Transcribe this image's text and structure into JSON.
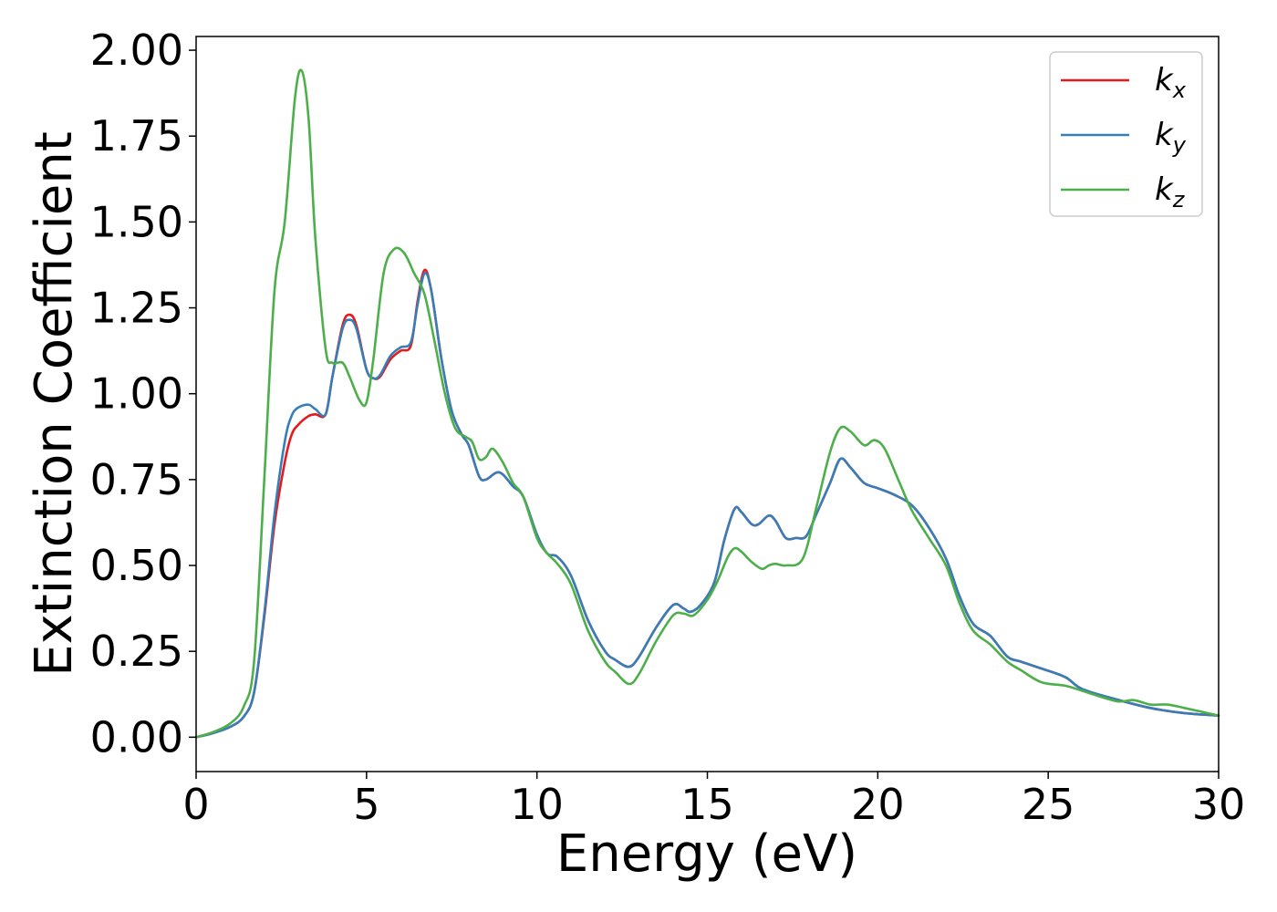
{
  "chart_data": {
    "type": "line",
    "xlabel": "Energy (eV)",
    "ylabel": "Extinction Coefficient",
    "xlim": [
      0,
      30
    ],
    "ylim": [
      -0.1,
      2.04
    ],
    "xticks": [
      0,
      5,
      10,
      15,
      20,
      25,
      30
    ],
    "xtick_labels": [
      "0",
      "5",
      "10",
      "15",
      "20",
      "25",
      "30"
    ],
    "yticks": [
      0,
      0.25,
      0.5,
      0.75,
      1.0,
      1.25,
      1.5,
      1.75,
      2.0
    ],
    "ytick_labels": [
      "0.00",
      "0.25",
      "0.50",
      "0.75",
      "1.00",
      "1.25",
      "1.50",
      "1.75",
      "2.00"
    ],
    "grid": false,
    "legend_position": "top-right",
    "series": [
      {
        "name": "k",
        "subscript": "x",
        "color": "#e41a1c",
        "points": [
          [
            0,
            0
          ],
          [
            0.5,
            0.012
          ],
          [
            1.0,
            0.03
          ],
          [
            1.4,
            0.06
          ],
          [
            1.7,
            0.13
          ],
          [
            2.0,
            0.35
          ],
          [
            2.3,
            0.62
          ],
          [
            2.6,
            0.8
          ],
          [
            2.8,
            0.88
          ],
          [
            3.0,
            0.91
          ],
          [
            3.3,
            0.935
          ],
          [
            3.5,
            0.94
          ],
          [
            3.8,
            0.94
          ],
          [
            4.0,
            1.05
          ],
          [
            4.3,
            1.2
          ],
          [
            4.5,
            1.23
          ],
          [
            4.7,
            1.2
          ],
          [
            5.0,
            1.07
          ],
          [
            5.2,
            1.045
          ],
          [
            5.4,
            1.05
          ],
          [
            5.7,
            1.1
          ],
          [
            6.0,
            1.125
          ],
          [
            6.3,
            1.14
          ],
          [
            6.5,
            1.27
          ],
          [
            6.7,
            1.36
          ],
          [
            6.9,
            1.3
          ],
          [
            7.2,
            1.1
          ],
          [
            7.5,
            0.95
          ],
          [
            7.8,
            0.88
          ],
          [
            8.0,
            0.85
          ],
          [
            8.3,
            0.76
          ],
          [
            8.5,
            0.75
          ],
          [
            8.8,
            0.77
          ],
          [
            9.0,
            0.765
          ],
          [
            9.3,
            0.73
          ],
          [
            9.6,
            0.7
          ],
          [
            10.0,
            0.59
          ],
          [
            10.3,
            0.535
          ],
          [
            10.6,
            0.525
          ],
          [
            11.0,
            0.47
          ],
          [
            11.5,
            0.34
          ],
          [
            12.0,
            0.25
          ],
          [
            12.3,
            0.225
          ],
          [
            12.7,
            0.205
          ],
          [
            13.0,
            0.235
          ],
          [
            13.5,
            0.32
          ],
          [
            14.0,
            0.385
          ],
          [
            14.3,
            0.375
          ],
          [
            14.5,
            0.365
          ],
          [
            14.8,
            0.385
          ],
          [
            15.2,
            0.45
          ],
          [
            15.5,
            0.575
          ],
          [
            15.8,
            0.665
          ],
          [
            16.0,
            0.655
          ],
          [
            16.3,
            0.62
          ],
          [
            16.5,
            0.62
          ],
          [
            16.8,
            0.645
          ],
          [
            17.0,
            0.63
          ],
          [
            17.3,
            0.58
          ],
          [
            17.6,
            0.58
          ],
          [
            17.9,
            0.585
          ],
          [
            18.2,
            0.65
          ],
          [
            18.6,
            0.74
          ],
          [
            18.9,
            0.81
          ],
          [
            19.2,
            0.785
          ],
          [
            19.6,
            0.74
          ],
          [
            20.0,
            0.725
          ],
          [
            20.5,
            0.705
          ],
          [
            21.0,
            0.675
          ],
          [
            21.5,
            0.61
          ],
          [
            22.0,
            0.52
          ],
          [
            22.4,
            0.41
          ],
          [
            22.8,
            0.33
          ],
          [
            23.3,
            0.295
          ],
          [
            23.8,
            0.235
          ],
          [
            24.2,
            0.22
          ],
          [
            24.8,
            0.2
          ],
          [
            25.5,
            0.175
          ],
          [
            26.0,
            0.14
          ],
          [
            27.0,
            0.11
          ],
          [
            28.0,
            0.085
          ],
          [
            29.0,
            0.07
          ],
          [
            30.0,
            0.063
          ]
        ]
      },
      {
        "name": "k",
        "subscript": "y",
        "color": "#377eb8",
        "points": [
          [
            0,
            0
          ],
          [
            0.5,
            0.012
          ],
          [
            1.0,
            0.03
          ],
          [
            1.4,
            0.06
          ],
          [
            1.7,
            0.13
          ],
          [
            2.0,
            0.36
          ],
          [
            2.3,
            0.65
          ],
          [
            2.6,
            0.86
          ],
          [
            2.8,
            0.935
          ],
          [
            3.0,
            0.96
          ],
          [
            3.3,
            0.968
          ],
          [
            3.5,
            0.955
          ],
          [
            3.8,
            0.94
          ],
          [
            4.0,
            1.05
          ],
          [
            4.3,
            1.19
          ],
          [
            4.5,
            1.215
          ],
          [
            4.7,
            1.19
          ],
          [
            5.0,
            1.07
          ],
          [
            5.2,
            1.045
          ],
          [
            5.4,
            1.055
          ],
          [
            5.7,
            1.11
          ],
          [
            6.0,
            1.135
          ],
          [
            6.3,
            1.15
          ],
          [
            6.5,
            1.26
          ],
          [
            6.7,
            1.35
          ],
          [
            6.9,
            1.3
          ],
          [
            7.2,
            1.1
          ],
          [
            7.5,
            0.95
          ],
          [
            7.8,
            0.88
          ],
          [
            8.0,
            0.85
          ],
          [
            8.3,
            0.76
          ],
          [
            8.5,
            0.75
          ],
          [
            8.8,
            0.77
          ],
          [
            9.0,
            0.765
          ],
          [
            9.3,
            0.73
          ],
          [
            9.6,
            0.7
          ],
          [
            10.0,
            0.59
          ],
          [
            10.3,
            0.535
          ],
          [
            10.6,
            0.525
          ],
          [
            11.0,
            0.47
          ],
          [
            11.5,
            0.34
          ],
          [
            12.0,
            0.25
          ],
          [
            12.3,
            0.225
          ],
          [
            12.7,
            0.205
          ],
          [
            13.0,
            0.235
          ],
          [
            13.5,
            0.32
          ],
          [
            14.0,
            0.385
          ],
          [
            14.3,
            0.375
          ],
          [
            14.5,
            0.365
          ],
          [
            14.8,
            0.385
          ],
          [
            15.2,
            0.45
          ],
          [
            15.5,
            0.575
          ],
          [
            15.8,
            0.665
          ],
          [
            16.0,
            0.655
          ],
          [
            16.3,
            0.62
          ],
          [
            16.5,
            0.62
          ],
          [
            16.8,
            0.645
          ],
          [
            17.0,
            0.63
          ],
          [
            17.3,
            0.58
          ],
          [
            17.6,
            0.58
          ],
          [
            17.9,
            0.585
          ],
          [
            18.2,
            0.65
          ],
          [
            18.6,
            0.74
          ],
          [
            18.9,
            0.81
          ],
          [
            19.2,
            0.785
          ],
          [
            19.6,
            0.74
          ],
          [
            20.0,
            0.725
          ],
          [
            20.5,
            0.705
          ],
          [
            21.0,
            0.675
          ],
          [
            21.5,
            0.61
          ],
          [
            22.0,
            0.52
          ],
          [
            22.4,
            0.41
          ],
          [
            22.8,
            0.33
          ],
          [
            23.3,
            0.295
          ],
          [
            23.8,
            0.235
          ],
          [
            24.2,
            0.22
          ],
          [
            24.8,
            0.2
          ],
          [
            25.5,
            0.175
          ],
          [
            26.0,
            0.14
          ],
          [
            27.0,
            0.11
          ],
          [
            28.0,
            0.085
          ],
          [
            29.0,
            0.07
          ],
          [
            30.0,
            0.063
          ]
        ]
      },
      {
        "name": "k",
        "subscript": "z",
        "color": "#4daf4a",
        "points": [
          [
            0,
            0
          ],
          [
            0.5,
            0.015
          ],
          [
            1.0,
            0.04
          ],
          [
            1.4,
            0.09
          ],
          [
            1.7,
            0.22
          ],
          [
            2.0,
            0.75
          ],
          [
            2.3,
            1.3
          ],
          [
            2.6,
            1.5
          ],
          [
            2.9,
            1.86
          ],
          [
            3.1,
            1.94
          ],
          [
            3.3,
            1.8
          ],
          [
            3.5,
            1.45
          ],
          [
            3.8,
            1.13
          ],
          [
            4.0,
            1.09
          ],
          [
            4.3,
            1.09
          ],
          [
            4.5,
            1.05
          ],
          [
            4.8,
            0.98
          ],
          [
            5.0,
            0.975
          ],
          [
            5.2,
            1.1
          ],
          [
            5.5,
            1.35
          ],
          [
            5.8,
            1.42
          ],
          [
            6.1,
            1.41
          ],
          [
            6.4,
            1.35
          ],
          [
            6.7,
            1.29
          ],
          [
            7.0,
            1.15
          ],
          [
            7.3,
            1.0
          ],
          [
            7.6,
            0.9
          ],
          [
            7.9,
            0.875
          ],
          [
            8.1,
            0.86
          ],
          [
            8.3,
            0.81
          ],
          [
            8.5,
            0.815
          ],
          [
            8.7,
            0.84
          ],
          [
            9.0,
            0.8
          ],
          [
            9.3,
            0.74
          ],
          [
            9.6,
            0.7
          ],
          [
            10.0,
            0.58
          ],
          [
            10.3,
            0.535
          ],
          [
            10.6,
            0.505
          ],
          [
            11.0,
            0.445
          ],
          [
            11.5,
            0.31
          ],
          [
            12.0,
            0.22
          ],
          [
            12.3,
            0.19
          ],
          [
            12.7,
            0.155
          ],
          [
            13.0,
            0.185
          ],
          [
            13.5,
            0.28
          ],
          [
            14.0,
            0.355
          ],
          [
            14.3,
            0.36
          ],
          [
            14.6,
            0.355
          ],
          [
            15.0,
            0.4
          ],
          [
            15.3,
            0.455
          ],
          [
            15.6,
            0.525
          ],
          [
            15.8,
            0.55
          ],
          [
            16.0,
            0.54
          ],
          [
            16.3,
            0.51
          ],
          [
            16.6,
            0.49
          ],
          [
            16.8,
            0.5
          ],
          [
            17.0,
            0.505
          ],
          [
            17.3,
            0.5
          ],
          [
            17.8,
            0.52
          ],
          [
            18.2,
            0.67
          ],
          [
            18.6,
            0.83
          ],
          [
            18.9,
            0.9
          ],
          [
            19.2,
            0.89
          ],
          [
            19.6,
            0.85
          ],
          [
            19.9,
            0.865
          ],
          [
            20.2,
            0.84
          ],
          [
            20.6,
            0.75
          ],
          [
            21.0,
            0.66
          ],
          [
            21.5,
            0.58
          ],
          [
            22.0,
            0.5
          ],
          [
            22.4,
            0.39
          ],
          [
            22.8,
            0.31
          ],
          [
            23.3,
            0.27
          ],
          [
            23.8,
            0.22
          ],
          [
            24.2,
            0.195
          ],
          [
            24.8,
            0.16
          ],
          [
            25.5,
            0.15
          ],
          [
            26.0,
            0.135
          ],
          [
            27.0,
            0.105
          ],
          [
            27.5,
            0.108
          ],
          [
            28.0,
            0.095
          ],
          [
            28.5,
            0.095
          ],
          [
            29.0,
            0.085
          ],
          [
            30.0,
            0.063
          ]
        ]
      }
    ]
  }
}
